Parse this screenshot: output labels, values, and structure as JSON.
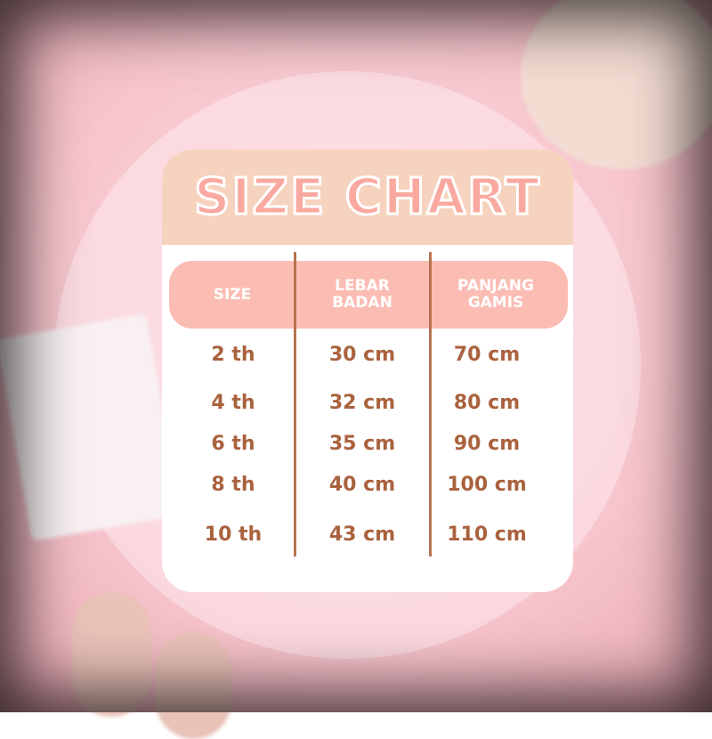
{
  "title": "SIZE CHART",
  "headers": [
    "SIZE",
    "LEBAR\nBADAN",
    "PANJANG\nGAMIS"
  ],
  "rows": [
    [
      "2 th",
      "30 cm",
      "70 cm"
    ],
    [
      "4 th",
      "32 cm",
      "80 cm"
    ],
    [
      "6 th",
      "35 cm",
      "90 cm"
    ],
    [
      "8 th",
      "40 cm",
      "100 cm"
    ],
    [
      "10 th",
      "43 cm",
      "110 cm"
    ]
  ],
  "colors": {
    "header_band": "#f6d3bf",
    "table_header": "#fbbdb3",
    "text": "#a9623e",
    "divider": "#b8734d",
    "background": "#f7c5cd"
  }
}
